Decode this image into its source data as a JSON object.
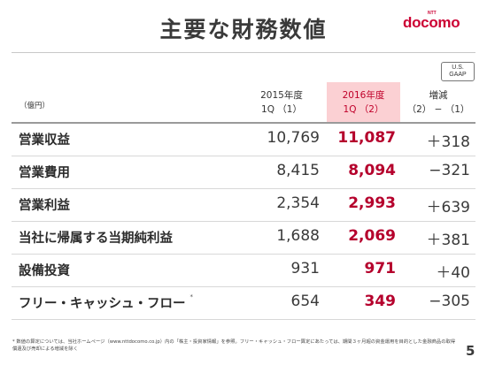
{
  "title": "主要な財務数値",
  "logo": {
    "ntt": "NTT",
    "name": "docomo",
    "brand_color": "#cc0033"
  },
  "badge": {
    "line1": "U.S.",
    "line2": "GAAP"
  },
  "unit": "（億円）",
  "headers": [
    {
      "line1": "2015年度",
      "line2": "1Q （1）"
    },
    {
      "line1": "2016年度",
      "line2": "1Q （2）"
    },
    {
      "line1": "増減",
      "line2": "（2） − （1）"
    }
  ],
  "rows": [
    {
      "label": "営業収益",
      "note": "",
      "fy2015": "10,769",
      "fy2016": "11,087",
      "change": "＋318"
    },
    {
      "label": "営業費用",
      "note": "",
      "fy2015": "8,415",
      "fy2016": "8,094",
      "change": "−321"
    },
    {
      "label": "営業利益",
      "note": "",
      "fy2015": "2,354",
      "fy2016": "2,993",
      "change": "＋639"
    },
    {
      "label": "当社に帰属する当期純利益",
      "note": "",
      "fy2015": "1,688",
      "fy2016": "2,069",
      "change": "＋381"
    },
    {
      "label": "設備投資",
      "note": "",
      "fy2015": "931",
      "fy2016": "971",
      "change": "＋40"
    },
    {
      "label": "フリー・キャッシュ・フロー",
      "note": "*",
      "fy2015": "654",
      "fy2016": "349",
      "change": "−305"
    }
  ],
  "footnote": {
    "line1": "* 数値の算定については、当社ホームページ（www.nttdocomo.co.jp）内の「株主・投資家情報」を参照。フリー・キャッシュ・フロー算定にあたっては、期間３ヶ月超の資金運用を目的とした金融商品の取得、",
    "line2": "償還及び売却による増減を除く"
  },
  "page_number": "5",
  "colors": {
    "highlight": "#fbd0d3",
    "accent": "#b5002c",
    "text": "#3a3a3a"
  }
}
